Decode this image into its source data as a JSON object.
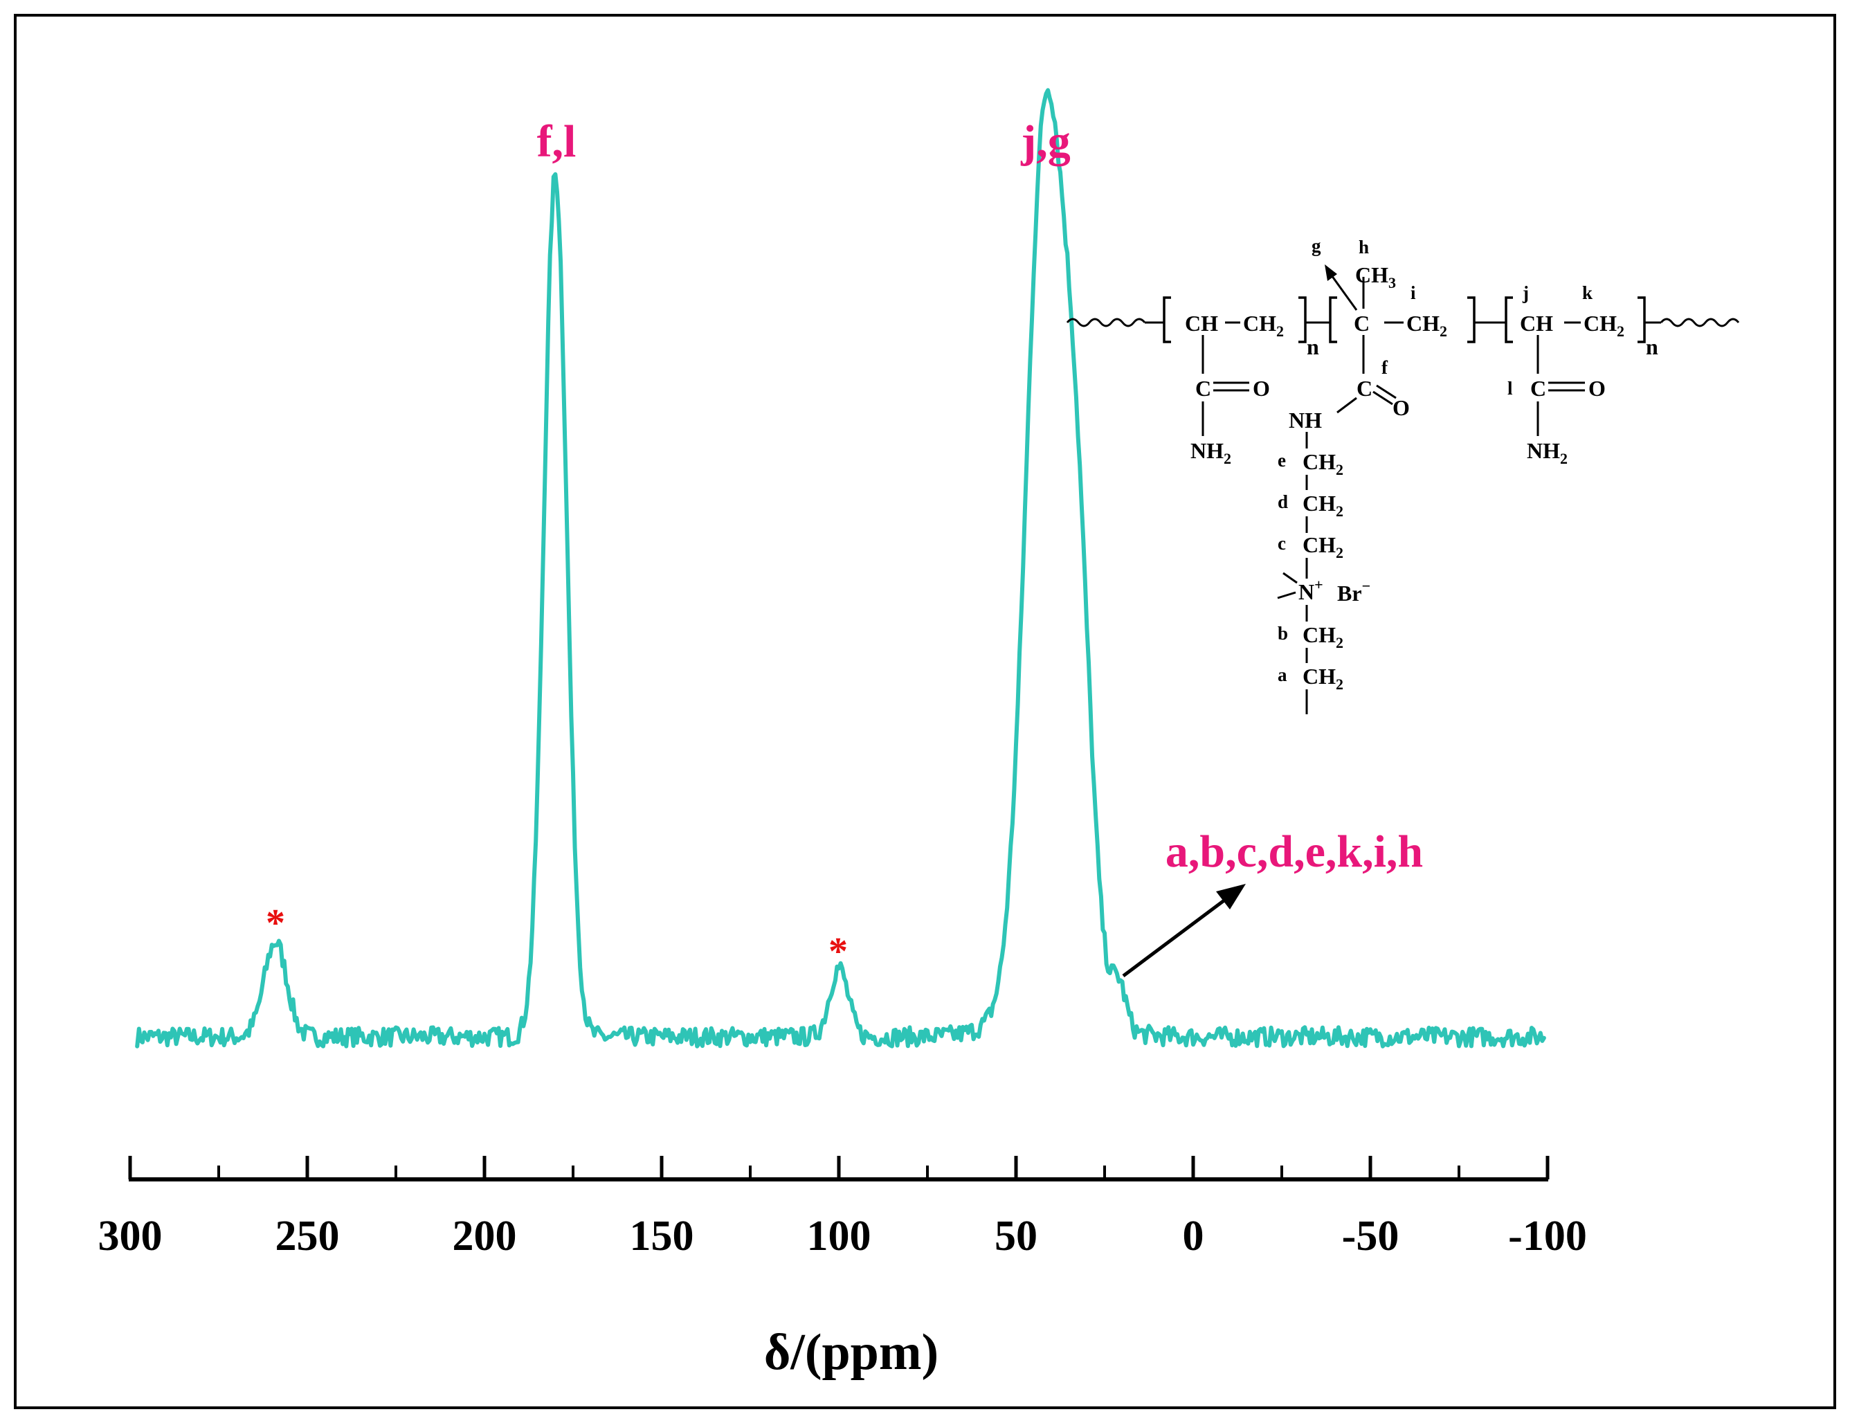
{
  "chart_data": {
    "type": "line",
    "xlabel": "δ/(ppm)",
    "xlim": [
      300,
      -100
    ],
    "x_reversed": true,
    "xticks": [
      "300",
      "250",
      "200",
      "150",
      "100",
      "50",
      "0",
      "-50",
      "-100"
    ],
    "yaxis_visible": false,
    "grid": false,
    "legend": "none",
    "line_color": "#2ec4b6",
    "peaks": [
      {
        "x": 259,
        "y": 0.11
      },
      {
        "x": 180,
        "y": 1.0
      },
      {
        "x": 100,
        "y": 0.08
      },
      {
        "x": 42,
        "y": 0.99
      },
      {
        "x": 33,
        "y": 0.48
      },
      {
        "x": 21,
        "y": 0.05
      }
    ],
    "annotations": {
      "fl": "f,l",
      "jg": "j,g",
      "aliphatic": "a,b,c,d,e,k,i,h",
      "star1": "*",
      "star2": "*"
    },
    "annotation_color": "#e8177a",
    "star_color": "#e81010"
  },
  "structure": {
    "CH": "CH",
    "CH2": "CH",
    "sub2": "2",
    "n": "n",
    "C": "C",
    "O": "O",
    "NH": "NH",
    "NH2": "NH",
    "CH3": "CH",
    "sub3": "3",
    "N": "N",
    "plus": "+",
    "Br": "Br",
    "minus": "−",
    "letters": {
      "a": "a",
      "b": "b",
      "c": "c",
      "d": "d",
      "e": "e",
      "f": "f",
      "g": "g",
      "h": "h",
      "i": "i",
      "j": "j",
      "k": "k",
      "l": "l"
    }
  }
}
